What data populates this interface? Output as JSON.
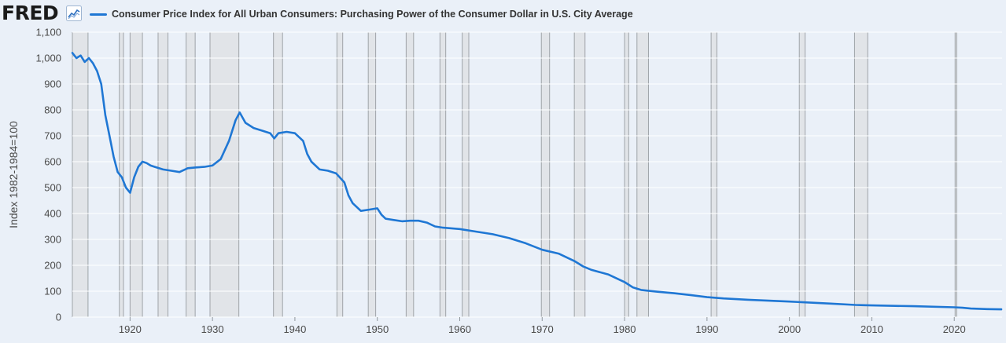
{
  "header": {
    "brand": "FRED",
    "brand_icon": "line-chart-icon"
  },
  "colors": {
    "line": "#1f77d4",
    "recession": "#e1e4e8",
    "recession_edge": "#9ea3a8",
    "grid": "#ffffff",
    "plot_bg": "#eaf0f8"
  },
  "chart_data": {
    "type": "line",
    "title": "",
    "ylabel": "Index 1982-1984=100",
    "xlabel": "",
    "xlim": [
      1913,
      2025.8
    ],
    "ylim": [
      0,
      1100
    ],
    "grid": true,
    "legend_position": "top-left",
    "yticks": [
      0,
      100,
      200,
      300,
      400,
      500,
      600,
      700,
      800,
      900,
      1000,
      1100
    ],
    "ytick_labels": [
      "0",
      "100",
      "200",
      "300",
      "400",
      "500",
      "600",
      "700",
      "800",
      "900",
      "1,000",
      "1,100"
    ],
    "xticks": [
      1920,
      1930,
      1940,
      1950,
      1960,
      1970,
      1980,
      1990,
      2000,
      2010,
      2020
    ],
    "xtick_labels": [
      "1920",
      "1930",
      "1940",
      "1950",
      "1960",
      "1970",
      "1980",
      "1990",
      "2000",
      "2010",
      "2020"
    ],
    "series": [
      {
        "name": "Consumer Price Index for All Urban Consumers: Purchasing Power of the Consumer Dollar in U.S. City Average",
        "x": [
          1913,
          1913.5,
          1914,
          1914.5,
          1915,
          1915.5,
          1916,
          1916.5,
          1917,
          1917.5,
          1918,
          1918.5,
          1919,
          1919.5,
          1920,
          1920.5,
          1921,
          1921.5,
          1922,
          1922.5,
          1923,
          1924,
          1925,
          1926,
          1927,
          1928,
          1929,
          1930,
          1931,
          1932,
          1932.8,
          1933.3,
          1934,
          1935,
          1936,
          1937,
          1937.5,
          1938,
          1939,
          1940,
          1941,
          1941.5,
          1942,
          1943,
          1944,
          1945,
          1946,
          1946.5,
          1947,
          1948,
          1949,
          1950,
          1950.5,
          1951,
          1952,
          1953,
          1954,
          1955,
          1956,
          1957,
          1958,
          1960,
          1962,
          1964,
          1966,
          1968,
          1970,
          1972,
          1974,
          1975,
          1976,
          1978,
          1980,
          1981,
          1982,
          1984,
          1986,
          1988,
          1990,
          1992,
          1995,
          2000,
          2005,
          2008,
          2009,
          2010,
          2015,
          2020,
          2021,
          2022,
          2023,
          2024,
          2025.7
        ],
        "y": [
          1020,
          1000,
          1010,
          985,
          1000,
          980,
          950,
          900,
          780,
          700,
          620,
          560,
          540,
          500,
          480,
          540,
          580,
          600,
          595,
          585,
          580,
          570,
          565,
          560,
          575,
          578,
          580,
          585,
          610,
          680,
          760,
          790,
          750,
          730,
          720,
          710,
          690,
          710,
          715,
          710,
          680,
          630,
          600,
          570,
          565,
          555,
          520,
          470,
          440,
          410,
          415,
          420,
          395,
          380,
          375,
          370,
          372,
          372,
          365,
          350,
          345,
          340,
          330,
          320,
          305,
          285,
          260,
          245,
          215,
          195,
          182,
          165,
          135,
          115,
          105,
          98,
          92,
          85,
          77,
          72,
          67,
          60,
          52,
          47,
          46,
          45,
          42,
          38,
          36,
          33,
          32,
          31,
          30
        ]
      }
    ],
    "recessions": [
      [
        1913.0,
        1914.9
      ],
      [
        1918.7,
        1919.2
      ],
      [
        1920.0,
        1921.5
      ],
      [
        1923.4,
        1924.6
      ],
      [
        1926.8,
        1927.9
      ],
      [
        1929.7,
        1933.2
      ],
      [
        1937.4,
        1938.5
      ],
      [
        1945.1,
        1945.8
      ],
      [
        1948.9,
        1949.8
      ],
      [
        1953.5,
        1954.4
      ],
      [
        1957.6,
        1958.3
      ],
      [
        1960.3,
        1961.1
      ],
      [
        1969.9,
        1970.9
      ],
      [
        1973.9,
        1975.2
      ],
      [
        1980.0,
        1980.5
      ],
      [
        1981.5,
        1982.9
      ],
      [
        1990.5,
        1991.2
      ],
      [
        2001.2,
        2001.9
      ],
      [
        2007.9,
        2009.5
      ],
      [
        2020.1,
        2020.3
      ]
    ]
  }
}
